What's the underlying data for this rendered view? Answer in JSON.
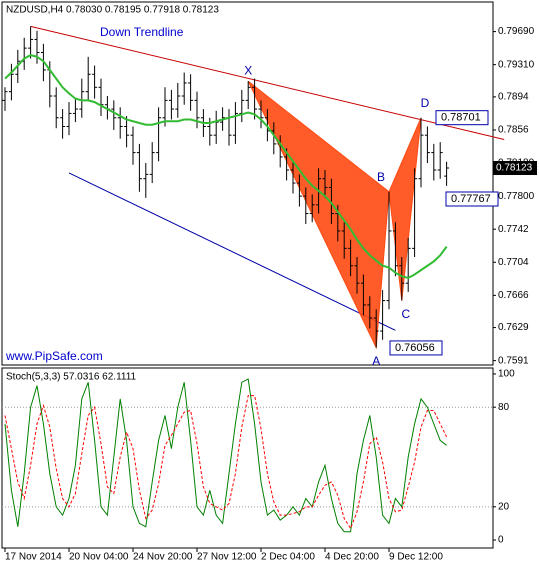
{
  "chart_data": {
    "type": "ohlc",
    "symbol_header": "NZDUSD,H4  0.78030 0.78195 0.77918 0.78123",
    "annotation_trend": "Down Trendline",
    "watermark": "www.PipSafe.com",
    "categories": [
      "17 Nov 2014",
      null,
      null,
      null,
      null,
      null,
      null,
      null,
      null,
      null,
      "20 Nov 04:00",
      null,
      null,
      null,
      null,
      null,
      null,
      null,
      null,
      null,
      "24 Nov 20:00",
      null,
      null,
      null,
      null,
      null,
      null,
      null,
      null,
      null,
      "27 Nov 12:00",
      null,
      null,
      null,
      null,
      null,
      null,
      null,
      null,
      null,
      "2 Dec 04:00",
      null,
      null,
      null,
      null,
      null,
      null,
      null,
      null,
      null,
      "4 Dec 20:00",
      null,
      null,
      null,
      null,
      null,
      null,
      null,
      null,
      null,
      "9 Dec 12:00",
      null,
      null,
      null,
      null,
      null,
      null,
      null,
      null,
      null
    ],
    "ohlc": [
      [
        0.789,
        0.7905,
        0.7878,
        0.79
      ],
      [
        0.79,
        0.7932,
        0.789,
        0.792
      ],
      [
        0.792,
        0.7948,
        0.791,
        0.7935
      ],
      [
        0.7935,
        0.7962,
        0.7925,
        0.795
      ],
      [
        0.795,
        0.7975,
        0.7938,
        0.796
      ],
      [
        0.796,
        0.797,
        0.7932,
        0.7945
      ],
      [
        0.7945,
        0.7955,
        0.7912,
        0.7925
      ],
      [
        0.7925,
        0.7935,
        0.7882,
        0.7895
      ],
      [
        0.7895,
        0.7905,
        0.7858,
        0.787
      ],
      [
        0.787,
        0.788,
        0.7846,
        0.786
      ],
      [
        0.786,
        0.7888,
        0.785,
        0.7875
      ],
      [
        0.7875,
        0.7892,
        0.7865,
        0.788
      ],
      [
        0.788,
        0.7915,
        0.787,
        0.79
      ],
      [
        0.79,
        0.794,
        0.789,
        0.792
      ],
      [
        0.792,
        0.793,
        0.7892,
        0.7905
      ],
      [
        0.7905,
        0.7915,
        0.7872,
        0.7885
      ],
      [
        0.7885,
        0.7895,
        0.7868,
        0.788
      ],
      [
        0.788,
        0.789,
        0.7856,
        0.787
      ],
      [
        0.787,
        0.7882,
        0.7846,
        0.786
      ],
      [
        0.786,
        0.7872,
        0.7836,
        0.785
      ],
      [
        0.785,
        0.786,
        0.7816,
        0.783
      ],
      [
        0.783,
        0.784,
        0.7785,
        0.78
      ],
      [
        0.78,
        0.7818,
        0.7778,
        0.7805
      ],
      [
        0.7805,
        0.7842,
        0.7795,
        0.783
      ],
      [
        0.783,
        0.7882,
        0.782,
        0.787
      ],
      [
        0.787,
        0.7905,
        0.786,
        0.789
      ],
      [
        0.789,
        0.7902,
        0.7868,
        0.788
      ],
      [
        0.788,
        0.791,
        0.787,
        0.7895
      ],
      [
        0.7895,
        0.7922,
        0.7885,
        0.791
      ],
      [
        0.791,
        0.792,
        0.7878,
        0.789
      ],
      [
        0.789,
        0.79,
        0.7858,
        0.787
      ],
      [
        0.787,
        0.788,
        0.7848,
        0.786
      ],
      [
        0.786,
        0.787,
        0.7838,
        0.785
      ],
      [
        0.785,
        0.7878,
        0.784,
        0.7865
      ],
      [
        0.7865,
        0.7882,
        0.7855,
        0.787
      ],
      [
        0.787,
        0.788,
        0.7838,
        0.785
      ],
      [
        0.785,
        0.7888,
        0.784,
        0.7875
      ],
      [
        0.7875,
        0.7902,
        0.7865,
        0.789
      ],
      [
        0.789,
        0.7912,
        0.788,
        0.7905
      ],
      [
        0.7905,
        0.7915,
        0.7868,
        0.788
      ],
      [
        0.788,
        0.789,
        0.7858,
        0.787
      ],
      [
        0.787,
        0.788,
        0.7843,
        0.7855
      ],
      [
        0.7855,
        0.7865,
        0.7828,
        0.784
      ],
      [
        0.784,
        0.785,
        0.7813,
        0.7825
      ],
      [
        0.7825,
        0.7835,
        0.7798,
        0.781
      ],
      [
        0.781,
        0.782,
        0.7783,
        0.7795
      ],
      [
        0.7795,
        0.7805,
        0.7768,
        0.778
      ],
      [
        0.778,
        0.779,
        0.7748,
        0.776
      ],
      [
        0.776,
        0.7782,
        0.775,
        0.777
      ],
      [
        0.777,
        0.7812,
        0.776,
        0.78
      ],
      [
        0.78,
        0.781,
        0.7778,
        0.779
      ],
      [
        0.779,
        0.78,
        0.7748,
        0.776
      ],
      [
        0.776,
        0.777,
        0.7728,
        0.774
      ],
      [
        0.774,
        0.775,
        0.7708,
        0.772
      ],
      [
        0.772,
        0.773,
        0.7688,
        0.77
      ],
      [
        0.77,
        0.771,
        0.7668,
        0.768
      ],
      [
        0.768,
        0.769,
        0.7643,
        0.7655
      ],
      [
        0.7655,
        0.7665,
        0.7628,
        0.764
      ],
      [
        0.764,
        0.765,
        0.7606,
        0.7625
      ],
      [
        0.7625,
        0.7672,
        0.7615,
        0.766
      ],
      [
        0.766,
        0.7785,
        0.765,
        0.774
      ],
      [
        0.774,
        0.775,
        0.7688,
        0.77
      ],
      [
        0.77,
        0.771,
        0.766,
        0.768
      ],
      [
        0.768,
        0.7732,
        0.767,
        0.772
      ],
      [
        0.772,
        0.7812,
        0.771,
        0.78
      ],
      [
        0.78,
        0.787,
        0.779,
        0.785
      ],
      [
        0.785,
        0.786,
        0.7818,
        0.783
      ],
      [
        0.783,
        0.784,
        0.7798,
        0.781
      ],
      [
        0.781,
        0.7842,
        0.78,
        0.783
      ],
      [
        0.7803,
        0.78195,
        0.77918,
        0.78123
      ]
    ],
    "bar_color": "#000000",
    "ma": {
      "color": "#33bb33",
      "values": [
        0.7915,
        0.7922,
        0.793,
        0.7938,
        0.7942,
        0.794,
        0.7935,
        0.7925,
        0.7915,
        0.7905,
        0.7898,
        0.7892,
        0.789,
        0.789,
        0.7888,
        0.7884,
        0.788,
        0.7876,
        0.7872,
        0.7868,
        0.7866,
        0.7864,
        0.7862,
        0.7862,
        0.7864,
        0.7866,
        0.7866,
        0.7866,
        0.7868,
        0.7868,
        0.7866,
        0.7864,
        0.7864,
        0.7866,
        0.7868,
        0.787,
        0.7872,
        0.7874,
        0.7876,
        0.7874,
        0.7868,
        0.786,
        0.785,
        0.784,
        0.783,
        0.782,
        0.781,
        0.78,
        0.7792,
        0.7786,
        0.778,
        0.7772,
        0.7762,
        0.7752,
        0.7742,
        0.773,
        0.772,
        0.7712,
        0.7706,
        0.77,
        0.7698,
        0.7692,
        0.7688,
        0.7686,
        0.769,
        0.7695,
        0.77,
        0.7705,
        0.7712,
        0.7722
      ]
    },
    "ylim": [
      0.7586,
      0.8003
    ],
    "yticks": [
      {
        "value": 0.7969,
        "label": "0.79690"
      },
      {
        "value": 0.7931,
        "label": "0.79310"
      },
      0.7894,
      0.7856,
      {
        "value": 0.7818,
        "label": "0.78180"
      },
      {
        "value": 0.778,
        "label": "0.77800"
      },
      0.7742,
      0.7704,
      0.7666,
      0.7629,
      0.7591
    ],
    "current_price": 0.78123,
    "trendlines": [
      {
        "color": "#c80000",
        "points": [
          [
            4,
            0.7975
          ],
          [
            78,
            0.7845
          ]
        ]
      },
      {
        "color": "#0000aa",
        "points": [
          [
            10,
            0.78066
          ],
          [
            61,
            0.76258
          ]
        ]
      }
    ],
    "pattern": {
      "color": "#ff4a12",
      "points": [
        {
          "name": "X",
          "bar": 38,
          "value": 0.7912
        },
        {
          "name": "A",
          "bar": 58,
          "value": 0.7606
        },
        {
          "name": "B",
          "bar": 60,
          "value": 0.7785
        },
        {
          "name": "C",
          "bar": 62,
          "value": 0.766
        },
        {
          "name": "D",
          "bar": 65,
          "value": 0.787
        }
      ]
    },
    "price_labels": [
      0.78701,
      0.77767,
      0.76056
    ],
    "grid": false,
    "stochastic": {
      "title": "Stoch(5,3,3) 57.0316 62.1111",
      "ylim": [
        -4.8,
        103.6
      ],
      "yticks": [
        100,
        80,
        20,
        0
      ],
      "series": [
        {
          "color": "#008000",
          "values": [
            70,
            30,
            8,
            40,
            80,
            93,
            70,
            40,
            20,
            15,
            25,
            45,
            85,
            95,
            60,
            20,
            15,
            50,
            85,
            60,
            20,
            10,
            8,
            35,
            60,
            75,
            55,
            80,
            95,
            60,
            20,
            15,
            30,
            15,
            10,
            40,
            70,
            95,
            97,
            70,
            35,
            15,
            18,
            12,
            15,
            20,
            15,
            25,
            20,
            35,
            45,
            25,
            10,
            5,
            5,
            40,
            60,
            75,
            50,
            15,
            10,
            25,
            20,
            50,
            70,
            85,
            80,
            70,
            60,
            57.0316
          ]
        },
        {
          "color": "#ff0000",
          "values": [
            75,
            55,
            35,
            25,
            45,
            70,
            81,
            68,
            43,
            25,
            20,
            28,
            52,
            75,
            80,
            58,
            32,
            28,
            50,
            65,
            55,
            30,
            13,
            18,
            34,
            57,
            63,
            70,
            77,
            78,
            58,
            32,
            22,
            20,
            18,
            22,
            40,
            68,
            87,
            87,
            67,
            40,
            23,
            15,
            15,
            16,
            17,
            20,
            20,
            27,
            33,
            35,
            27,
            13,
            7,
            17,
            35,
            58,
            62,
            47,
            25,
            17,
            18,
            32,
            47,
            68,
            78,
            78,
            70,
            62.1111
          ]
        }
      ]
    }
  }
}
